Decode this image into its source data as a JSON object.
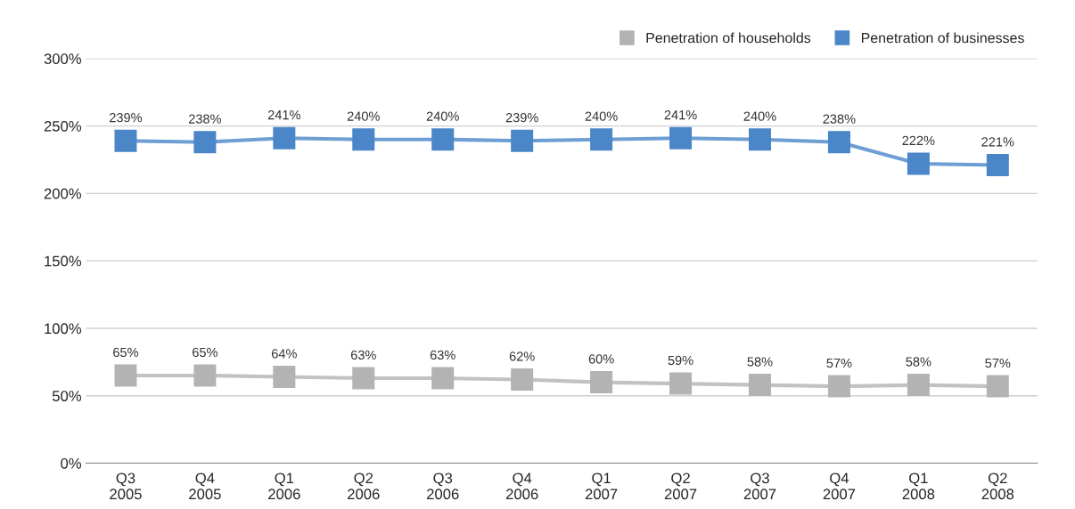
{
  "chart_data": {
    "type": "line",
    "categories": [
      "Q3\n2005",
      "Q4\n2005",
      "Q1\n2006",
      "Q2\n2006",
      "Q3\n2006",
      "Q4\n2006",
      "Q1\n2007",
      "Q2\n2007",
      "Q3\n2007",
      "Q4\n2007",
      "Q1\n2008",
      "Q2\n2008"
    ],
    "series": [
      {
        "name": "Penetration of households",
        "color": "#b3b3b3",
        "values": [
          65,
          65,
          64,
          63,
          63,
          62,
          60,
          59,
          58,
          57,
          58,
          57
        ],
        "value_labels": [
          "65%",
          "65%",
          "64%",
          "63%",
          "63%",
          "62%",
          "60%",
          "59%",
          "58%",
          "57%",
          "58%",
          "57%"
        ]
      },
      {
        "name": "Penetration of businesses",
        "color": "#4a86c8",
        "values": [
          239,
          238,
          241,
          240,
          240,
          239,
          240,
          241,
          240,
          238,
          222,
          221
        ],
        "value_labels": [
          "239%",
          "238%",
          "241%",
          "240%",
          "240%",
          "239%",
          "240%",
          "241%",
          "240%",
          "238%",
          "222%",
          "221%"
        ]
      }
    ],
    "ylim": [
      0,
      300
    ],
    "yticks": [
      {
        "value": 0,
        "label": "0%"
      },
      {
        "value": 50,
        "label": "50%"
      },
      {
        "value": 100,
        "label": "100%"
      },
      {
        "value": 150,
        "label": "150%"
      },
      {
        "value": 200,
        "label": "200%"
      },
      {
        "value": 250,
        "label": "250%"
      },
      {
        "value": 300,
        "label": "300%"
      }
    ],
    "grid": "y",
    "legend": "top right",
    "marker": "square",
    "line_style": "solid"
  }
}
